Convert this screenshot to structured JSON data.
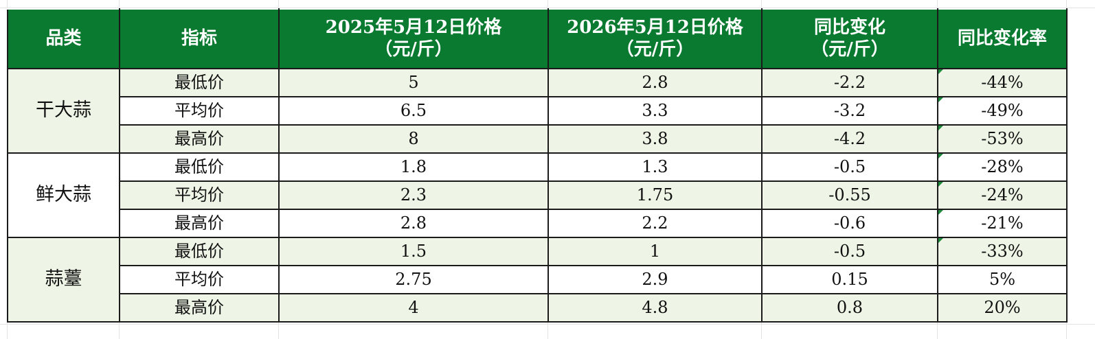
{
  "headers": {
    "category": "品类",
    "indicator": "指标",
    "price_2025_line1": "2025年5月12日价格",
    "price_2025_line2": "（元/斤）",
    "price_2026_line1": "2026年5月12日价格",
    "price_2026_line2": "（元/斤）",
    "change_line1": "同比变化",
    "change_line2": "（元/斤）",
    "rate": "同比变化率"
  },
  "groups": [
    {
      "category": "干大蒜",
      "rows": [
        {
          "indicator": "最低价",
          "p2025": "5",
          "p2026": "2.8",
          "change": "-2.2",
          "rate": "-44%"
        },
        {
          "indicator": "平均价",
          "p2025": "6.5",
          "p2026": "3.3",
          "change": "-3.2",
          "rate": "-49%"
        },
        {
          "indicator": "最高价",
          "p2025": "8",
          "p2026": "3.8",
          "change": "-4.2",
          "rate": "-53%"
        }
      ]
    },
    {
      "category": "鲜大蒜",
      "rows": [
        {
          "indicator": "最低价",
          "p2025": "1.8",
          "p2026": "1.3",
          "change": "-0.5",
          "rate": "-28%"
        },
        {
          "indicator": "平均价",
          "p2025": "2.3",
          "p2026": "1.75",
          "change": "-0.55",
          "rate": "-24%"
        },
        {
          "indicator": "最高价",
          "p2025": "2.8",
          "p2026": "2.2",
          "change": "-0.6",
          "rate": "-21%"
        }
      ]
    },
    {
      "category": "蒜薹",
      "rows": [
        {
          "indicator": "最低价",
          "p2025": "1.5",
          "p2026": "1",
          "change": "-0.5",
          "rate": "-33%"
        },
        {
          "indicator": "平均价",
          "p2025": "2.75",
          "p2026": "2.9",
          "change": "0.15",
          "rate": "5%"
        },
        {
          "indicator": "最高价",
          "p2025": "4",
          "p2026": "4.8",
          "change": "0.8",
          "rate": "20%"
        }
      ]
    }
  ],
  "colors": {
    "header_bg": "#0a7a30",
    "shade_bg": "#eef5e6",
    "indicator_triangle": "#1f8a3c"
  }
}
